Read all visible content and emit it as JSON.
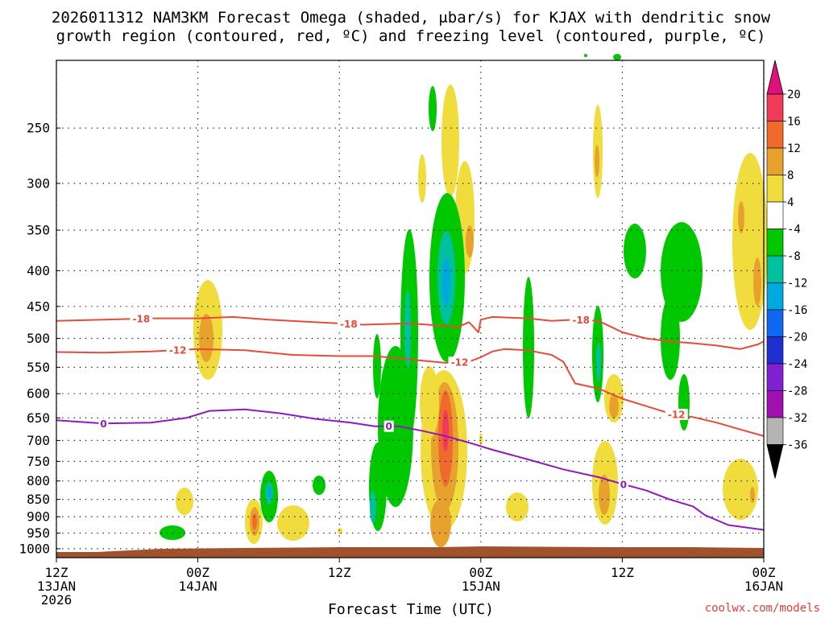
{
  "chart_data": {
    "type": "time-height cross section",
    "title_line1": "2026011312 NAM3KM Forecast Omega (shaded, μbar/s) for KJAX with dendritic snow",
    "title_line2": "growth region (contoured, red, ºC) and freezing level (contoured, purple, ºC)",
    "xlabel": "Forecast Time (UTC)",
    "watermark": "coolwx.com/models",
    "x_forecast_hours": [
      0,
      60
    ],
    "y_pressure_hPa": [
      1030,
      200
    ],
    "pressure_ticks": [
      250,
      300,
      350,
      400,
      450,
      500,
      550,
      600,
      650,
      700,
      750,
      800,
      850,
      900,
      950,
      1000
    ],
    "time_ticks": [
      {
        "hour": 0,
        "l1": "12Z",
        "l2": "13JAN",
        "l3": "2026"
      },
      {
        "hour": 12,
        "l1": "00Z",
        "l2": "14JAN",
        "l3": ""
      },
      {
        "hour": 24,
        "l1": "12Z",
        "l2": "",
        "l3": ""
      },
      {
        "hour": 36,
        "l1": "00Z",
        "l2": "15JAN",
        "l3": ""
      },
      {
        "hour": 48,
        "l1": "12Z",
        "l2": "",
        "l3": ""
      },
      {
        "hour": 60,
        "l1": "00Z",
        "l2": "16JAN",
        "l3": ""
      }
    ],
    "colorbar": {
      "labels": [
        "20",
        "16",
        "12",
        "8",
        "4",
        "-4",
        "-8",
        "-12",
        "-16",
        "-20",
        "-24",
        "-28",
        "-32",
        "-36"
      ],
      "colors": [
        "#f03a5a",
        "#f06a2e",
        "#e6a22d",
        "#f0dc3c",
        "#ffffff",
        "#00c800",
        "#00c0a0",
        "#00a8e0",
        "#1068f0",
        "#2030d0",
        "#8020d0",
        "#a010b0",
        "#b4b4b4",
        "#000000"
      ],
      "top_arrow_color": "#e0107a",
      "bottom_arrow_color": "#000000"
    },
    "contours": [
      {
        "label": "-18",
        "color": "#e84a3a",
        "label_hours": [
          7.2,
          24.8,
          44.5
        ],
        "points": [
          [
            0,
            472
          ],
          [
            4,
            470
          ],
          [
            8,
            468
          ],
          [
            12,
            468
          ],
          [
            15,
            466
          ],
          [
            18,
            470
          ],
          [
            22,
            474
          ],
          [
            26,
            478
          ],
          [
            30,
            476
          ],
          [
            33,
            480
          ],
          [
            34,
            482
          ],
          [
            35,
            474
          ],
          [
            35.8,
            490
          ],
          [
            36,
            470
          ],
          [
            37,
            466
          ],
          [
            40,
            468
          ],
          [
            42,
            472
          ],
          [
            44,
            470
          ],
          [
            46,
            472
          ],
          [
            48,
            490
          ],
          [
            50,
            500
          ],
          [
            52,
            505
          ],
          [
            54,
            508
          ],
          [
            56,
            512
          ],
          [
            58,
            518
          ],
          [
            59.5,
            510
          ],
          [
            60,
            505
          ]
        ]
      },
      {
        "label": "-12",
        "color": "#e84a3a",
        "label_hours": [
          10.3,
          34.2,
          52.6
        ],
        "points": [
          [
            0,
            523
          ],
          [
            4,
            524
          ],
          [
            8,
            522
          ],
          [
            12,
            518
          ],
          [
            16,
            520
          ],
          [
            20,
            528
          ],
          [
            24,
            530
          ],
          [
            27,
            530
          ],
          [
            30,
            536
          ],
          [
            33,
            542
          ],
          [
            35,
            540
          ],
          [
            36,
            532
          ],
          [
            37,
            522
          ],
          [
            38,
            518
          ],
          [
            40,
            520
          ],
          [
            42,
            528
          ],
          [
            43,
            540
          ],
          [
            44,
            580
          ],
          [
            46,
            590
          ],
          [
            48,
            610
          ],
          [
            50,
            625
          ],
          [
            52,
            640
          ],
          [
            54,
            648
          ],
          [
            56,
            660
          ],
          [
            58,
            675
          ],
          [
            60,
            690
          ]
        ]
      },
      {
        "label": "0",
        "color": "#9018c0",
        "label_hours": [
          4.0,
          28.2,
          48.1
        ],
        "points": [
          [
            0,
            655
          ],
          [
            4,
            662
          ],
          [
            8,
            660
          ],
          [
            11,
            650
          ],
          [
            13,
            635
          ],
          [
            16,
            632
          ],
          [
            19,
            640
          ],
          [
            22,
            652
          ],
          [
            25,
            660
          ],
          [
            27,
            668
          ],
          [
            29,
            668
          ],
          [
            31,
            678
          ],
          [
            33,
            690
          ],
          [
            35,
            705
          ],
          [
            37,
            722
          ],
          [
            40,
            745
          ],
          [
            43,
            770
          ],
          [
            46,
            790
          ],
          [
            48,
            808
          ],
          [
            50,
            825
          ],
          [
            52,
            850
          ],
          [
            54,
            870
          ],
          [
            55,
            895
          ],
          [
            57,
            925
          ],
          [
            59,
            935
          ],
          [
            60,
            940
          ]
        ]
      }
    ]
  }
}
